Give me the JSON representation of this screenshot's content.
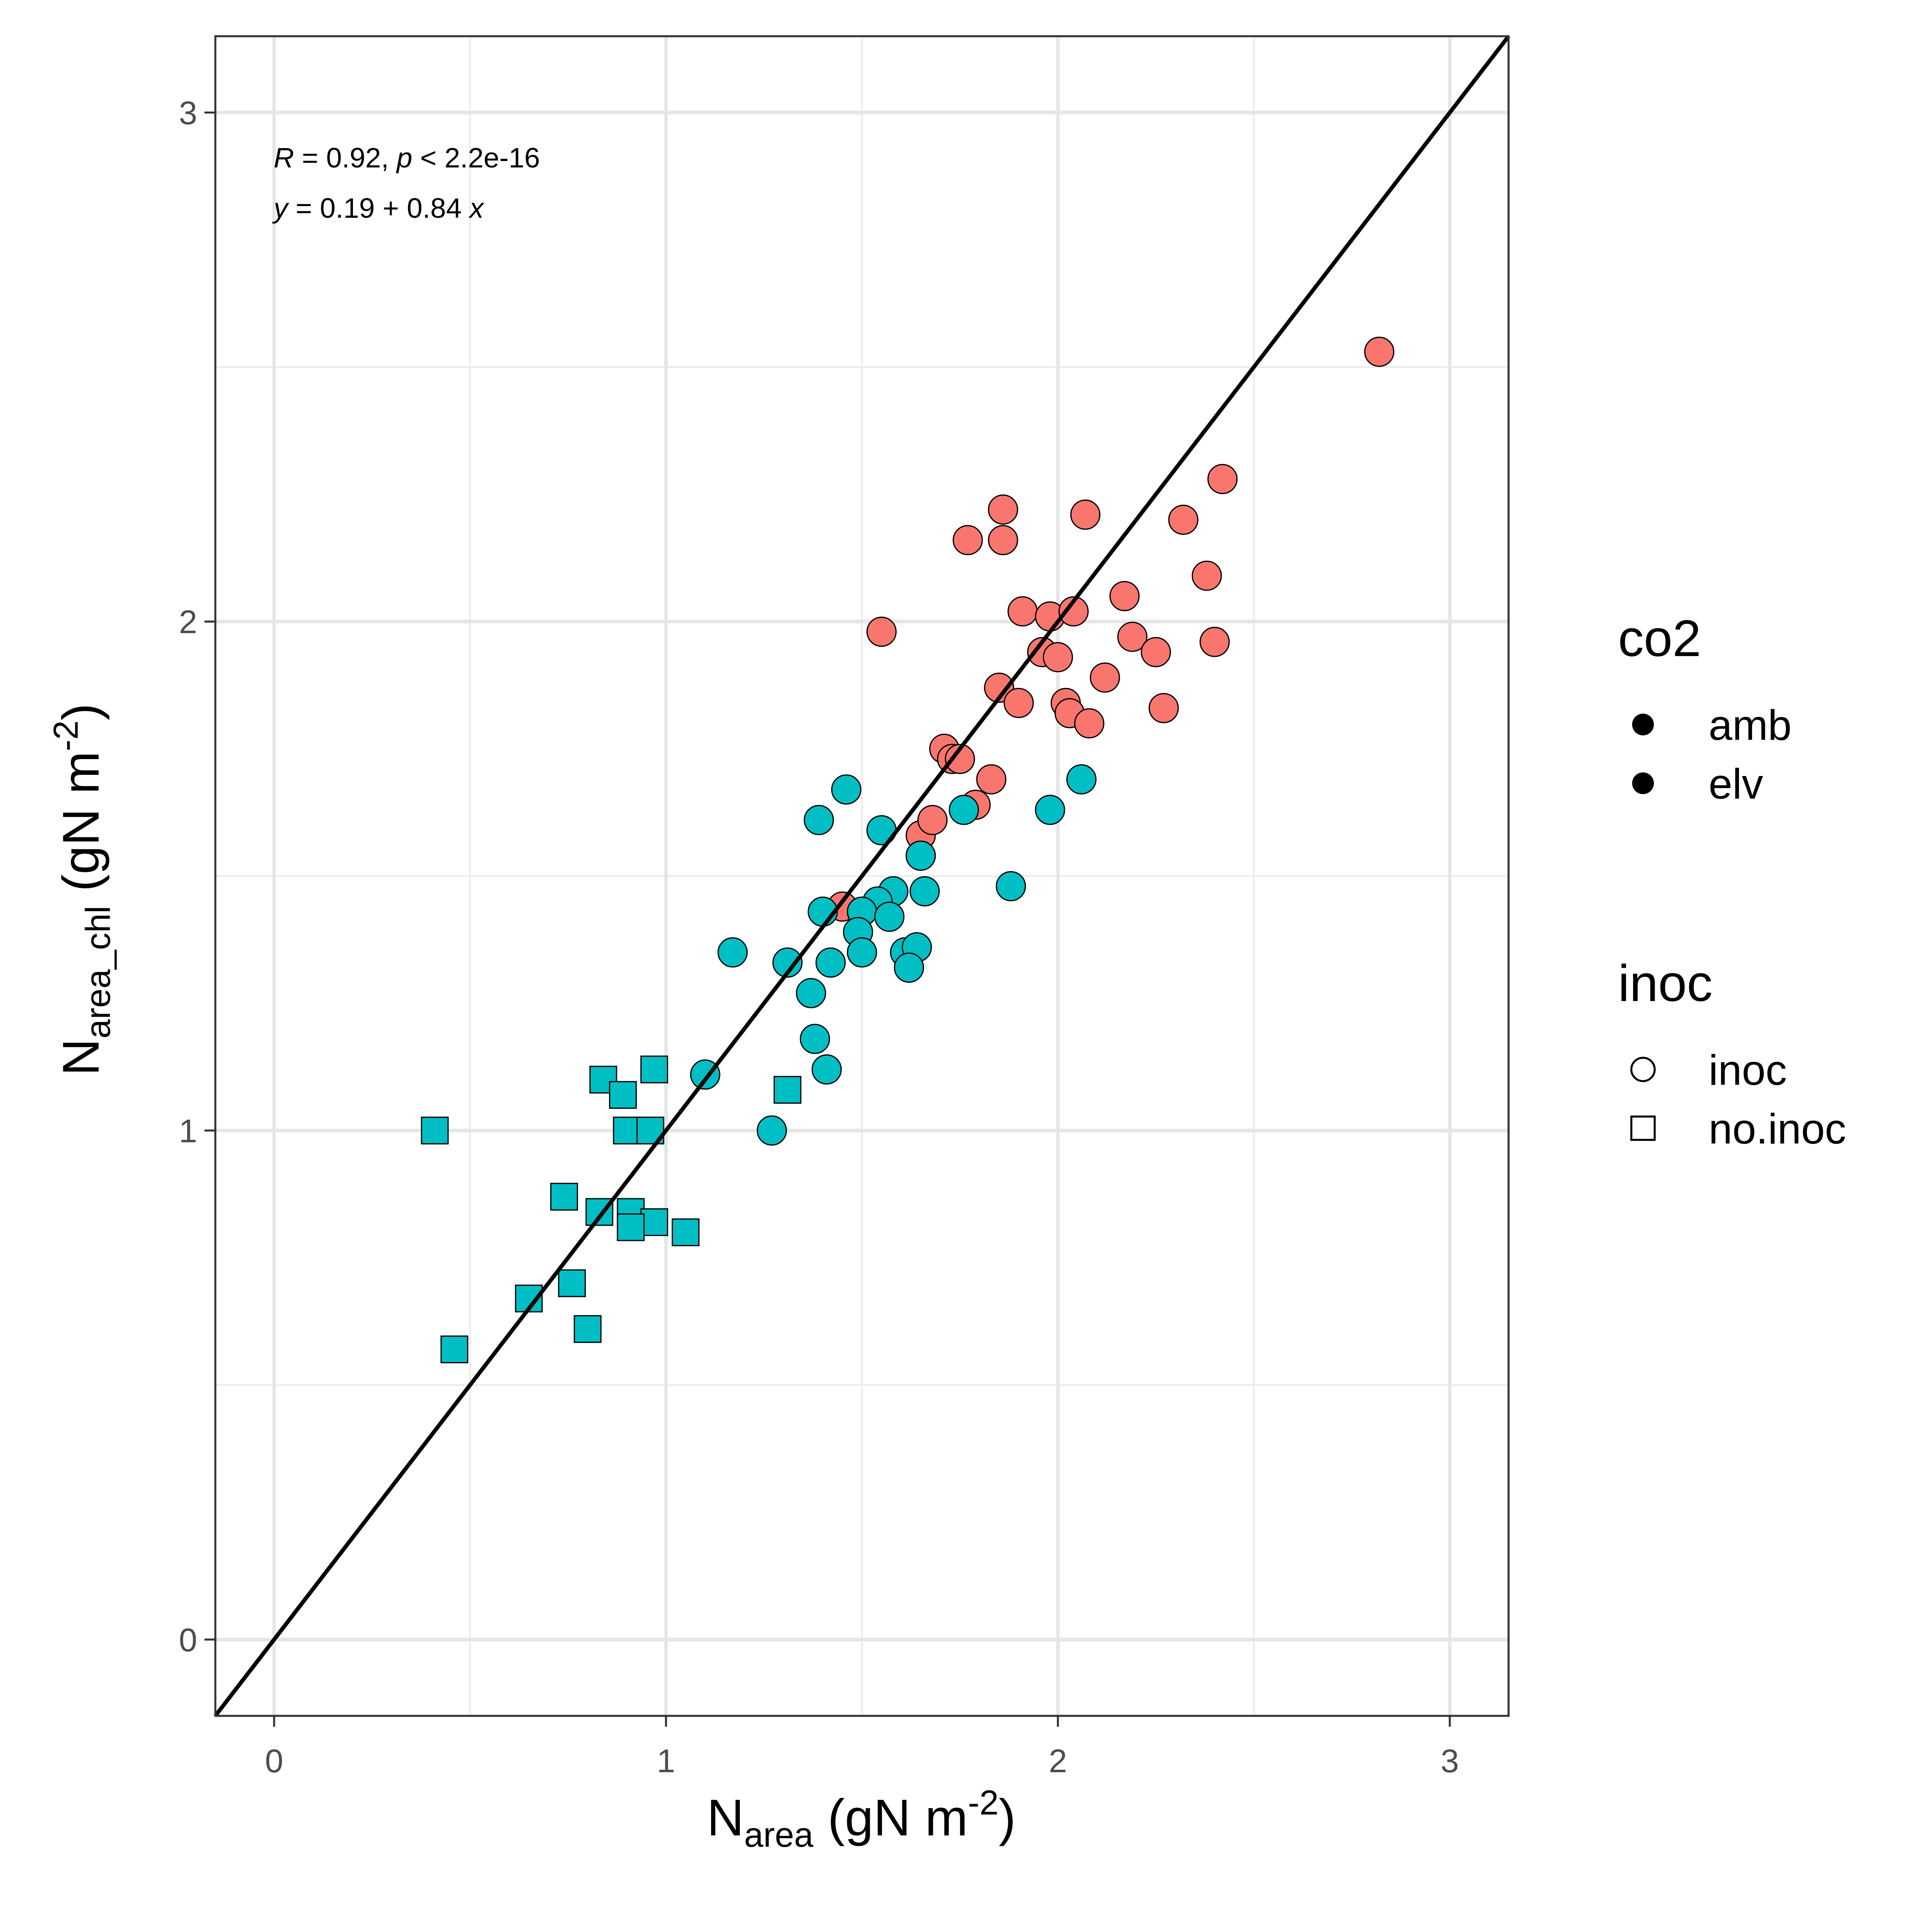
{
  "chart_data": {
    "type": "scatter",
    "xlabel": {
      "main": "N",
      "sub": "area",
      "rest": " (gN m",
      "sup": "-2",
      "close": ")"
    },
    "ylabel": {
      "main": "N",
      "sub": "area_chl",
      "rest": " (gN m",
      "sup": "-2",
      "close": ")"
    },
    "xlim": [
      -0.15,
      3.15
    ],
    "ylim": [
      -0.15,
      3.15
    ],
    "x_ticks": [
      0,
      1,
      2,
      3
    ],
    "y_ticks": [
      0,
      1,
      2,
      3
    ],
    "x_tick_labels": [
      "0",
      "1",
      "2",
      "3"
    ],
    "y_tick_labels": [
      "0",
      "1",
      "2",
      "3"
    ],
    "grid": true,
    "reference_line": {
      "slope": 1,
      "intercept": 0
    },
    "annotations": {
      "stats": {
        "r_label": "R",
        "r_text": " = 0.92, ",
        "p_label": "p",
        "p_text": " < 2.2e-16"
      },
      "equation": {
        "y_label": "y",
        "eq_text": " = 0.19 + 0.84 ",
        "x_label": "x"
      }
    },
    "legend": {
      "placement": "right",
      "co2": {
        "title": "co2",
        "items": [
          "amb",
          "elv"
        ]
      },
      "inoc": {
        "title": "inoc",
        "items": [
          "inoc",
          "no.inoc"
        ]
      }
    },
    "colors": {
      "amb": "#F8766D",
      "elv": "#00BFC4"
    },
    "series": [
      {
        "co2": "amb",
        "inoc": "inoc",
        "points": [
          [
            2.82,
            2.53
          ],
          [
            2.42,
            2.28
          ],
          [
            2.32,
            2.2
          ],
          [
            2.38,
            2.09
          ],
          [
            2.4,
            1.96
          ],
          [
            2.17,
            2.05
          ],
          [
            2.19,
            1.97
          ],
          [
            2.25,
            1.94
          ],
          [
            2.27,
            1.83
          ],
          [
            2.12,
            1.89
          ],
          [
            2.07,
            2.21
          ],
          [
            1.86,
            2.22
          ],
          [
            1.86,
            2.16
          ],
          [
            1.77,
            2.16
          ],
          [
            1.91,
            2.02
          ],
          [
            1.98,
            2.01
          ],
          [
            2.04,
            2.02
          ],
          [
            1.96,
            1.94
          ],
          [
            2.0,
            1.93
          ],
          [
            2.02,
            1.84
          ],
          [
            2.03,
            1.82
          ],
          [
            2.08,
            1.8
          ],
          [
            1.85,
            1.87
          ],
          [
            1.9,
            1.84
          ],
          [
            1.55,
            1.98
          ],
          [
            1.71,
            1.75
          ],
          [
            1.73,
            1.73
          ],
          [
            1.75,
            1.73
          ],
          [
            1.83,
            1.69
          ],
          [
            1.79,
            1.64
          ],
          [
            1.65,
            1.58
          ],
          [
            1.68,
            1.61
          ],
          [
            1.45,
            1.44
          ]
        ]
      },
      {
        "co2": "elv",
        "inoc": "inoc",
        "points": [
          [
            1.46,
            1.67
          ],
          [
            1.39,
            1.61
          ],
          [
            1.55,
            1.59
          ],
          [
            1.76,
            1.63
          ],
          [
            1.65,
            1.54
          ],
          [
            1.65,
            1.54
          ],
          [
            1.58,
            1.47
          ],
          [
            1.66,
            1.47
          ],
          [
            1.54,
            1.45
          ],
          [
            1.4,
            1.43
          ],
          [
            1.5,
            1.43
          ],
          [
            1.57,
            1.42
          ],
          [
            1.49,
            1.39
          ],
          [
            1.17,
            1.35
          ],
          [
            1.5,
            1.35
          ],
          [
            1.31,
            1.33
          ],
          [
            1.42,
            1.33
          ],
          [
            1.61,
            1.35
          ],
          [
            1.64,
            1.36
          ],
          [
            1.62,
            1.32
          ],
          [
            1.37,
            1.27
          ],
          [
            1.38,
            1.18
          ],
          [
            1.41,
            1.12
          ],
          [
            1.1,
            1.11
          ],
          [
            1.27,
            1.0
          ],
          [
            1.88,
            1.48
          ],
          [
            1.98,
            1.63
          ],
          [
            2.06,
            1.69
          ]
        ]
      },
      {
        "co2": "elv",
        "inoc": "no.inoc",
        "points": [
          [
            0.41,
            1.0
          ],
          [
            0.84,
            1.1
          ],
          [
            0.89,
            1.07
          ],
          [
            0.97,
            1.12
          ],
          [
            1.31,
            1.08
          ],
          [
            0.9,
            1.0
          ],
          [
            0.96,
            1.0
          ],
          [
            0.74,
            0.87
          ],
          [
            0.83,
            0.84
          ],
          [
            0.91,
            0.84
          ],
          [
            0.97,
            0.82
          ],
          [
            0.91,
            0.81
          ],
          [
            1.05,
            0.8
          ],
          [
            0.76,
            0.7
          ],
          [
            0.65,
            0.67
          ],
          [
            0.8,
            0.61
          ],
          [
            0.46,
            0.57
          ]
        ]
      }
    ]
  }
}
